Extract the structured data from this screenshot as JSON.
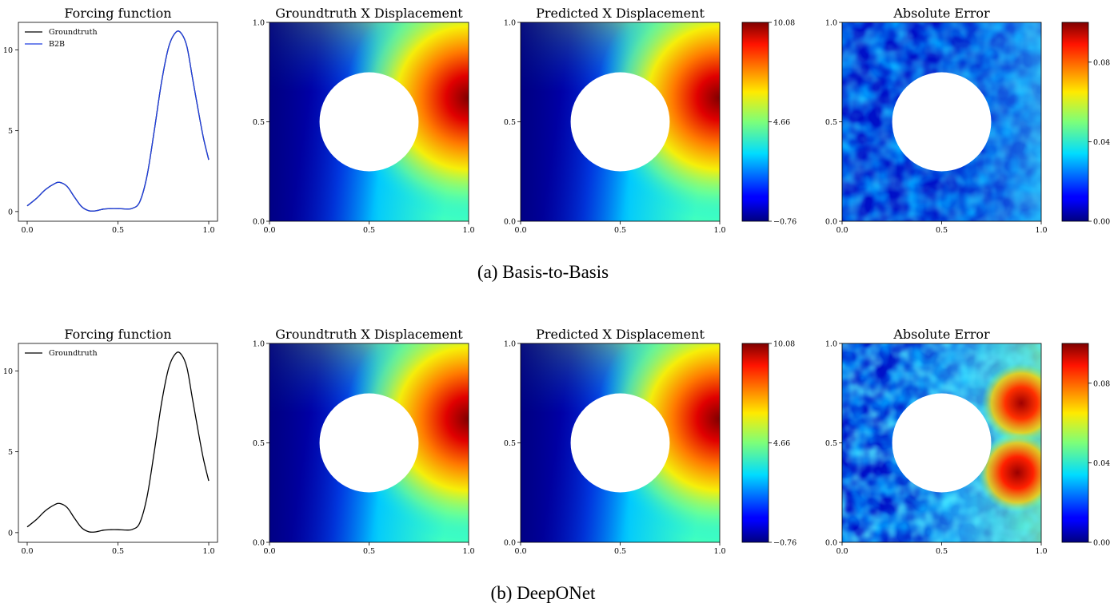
{
  "colors": {
    "groundtruth": "#000000",
    "b2b": "#1f3fe0",
    "hole": "#ffffff"
  },
  "rows": [
    {
      "caption": "(a) Basis-to-Basis",
      "forcing": {
        "title": "Forcing function",
        "legend": [
          {
            "name": "Groundtruth",
            "color": "#000000"
          },
          {
            "name": "B2B",
            "color": "#1f3fe0"
          }
        ]
      },
      "gt": {
        "title": "Groundtruth X Displacement"
      },
      "pred": {
        "title": "Predicted X Displacement"
      },
      "disp_colorbar": {
        "ticks": [
          "10.08",
          "4.66",
          "−0.76"
        ]
      },
      "err": {
        "title": "Absolute Error"
      },
      "err_colorbar": {
        "ticks": [
          "0.08",
          "0.04",
          "0.00"
        ]
      }
    },
    {
      "caption": "(b) DeepONet",
      "forcing": {
        "title": "Forcing function",
        "legend": [
          {
            "name": "Groundtruth",
            "color": "#000000"
          }
        ]
      },
      "gt": {
        "title": "Groundtruth X Displacement"
      },
      "pred": {
        "title": "Predicted X Displacement"
      },
      "disp_colorbar": {
        "ticks": [
          "10.08",
          "4.66",
          "−0.76"
        ]
      },
      "err": {
        "title": "Absolute Error"
      },
      "err_colorbar": {
        "ticks": [
          "0.00",
          "0.04",
          "0.08"
        ]
      }
    }
  ],
  "chart_data": [
    {
      "type": "line",
      "title": "Forcing function",
      "xlim": [
        0,
        1
      ],
      "ylim": [
        -0.6,
        11.7
      ],
      "xticks": [
        "0.0",
        "0.5",
        "1.0"
      ],
      "yticks": [
        "0",
        "5",
        "10"
      ],
      "x": [
        0.0,
        0.05,
        0.1,
        0.15,
        0.18,
        0.22,
        0.26,
        0.3,
        0.34,
        0.38,
        0.42,
        0.46,
        0.5,
        0.54,
        0.58,
        0.62,
        0.66,
        0.7,
        0.74,
        0.78,
        0.82,
        0.85,
        0.88,
        0.91,
        0.94,
        0.97,
        1.0
      ],
      "series": [
        {
          "name": "Groundtruth",
          "values": [
            0.35,
            0.8,
            1.35,
            1.72,
            1.8,
            1.55,
            0.9,
            0.3,
            0.05,
            0.05,
            0.15,
            0.18,
            0.18,
            0.16,
            0.2,
            0.6,
            2.2,
            5.0,
            8.0,
            10.2,
            11.1,
            11.0,
            10.2,
            8.3,
            6.4,
            4.6,
            3.2
          ]
        },
        {
          "name": "B2B",
          "values": [
            0.35,
            0.8,
            1.35,
            1.72,
            1.8,
            1.55,
            0.9,
            0.3,
            0.05,
            0.05,
            0.15,
            0.18,
            0.18,
            0.16,
            0.2,
            0.6,
            2.2,
            5.0,
            8.0,
            10.2,
            11.1,
            11.0,
            10.2,
            8.3,
            6.4,
            4.6,
            3.2
          ]
        }
      ]
    },
    {
      "type": "heatmap",
      "title": "Groundtruth X Displacement",
      "xlim": [
        0,
        1
      ],
      "ylim": [
        0,
        1
      ],
      "xticks": [
        "0.0",
        "0.5",
        "1.0"
      ],
      "yticks": [
        "0.0",
        "0.5",
        "1.0"
      ],
      "colorbar": {
        "min": -0.76,
        "max": 10.08,
        "ticks": [
          -0.76,
          4.66,
          10.08
        ]
      },
      "hole": {
        "cx": 0.5,
        "cy": 0.5,
        "r": 0.25
      }
    },
    {
      "type": "heatmap",
      "title": "Predicted X Displacement",
      "xlim": [
        0,
        1
      ],
      "ylim": [
        0,
        1
      ],
      "colorbar": {
        "min": -0.76,
        "max": 10.08,
        "ticks": [
          -0.76,
          4.66,
          10.08
        ]
      },
      "hole": {
        "cx": 0.5,
        "cy": 0.5,
        "r": 0.25
      }
    },
    {
      "type": "heatmap",
      "title": "Absolute Error",
      "xlim": [
        0,
        1
      ],
      "ylim": [
        0,
        1
      ],
      "colorbar": {
        "min": 0.0,
        "max": 0.1,
        "ticks": [
          0.0,
          0.04,
          0.08
        ]
      },
      "hole": {
        "cx": 0.5,
        "cy": 0.5,
        "r": 0.25
      }
    }
  ]
}
